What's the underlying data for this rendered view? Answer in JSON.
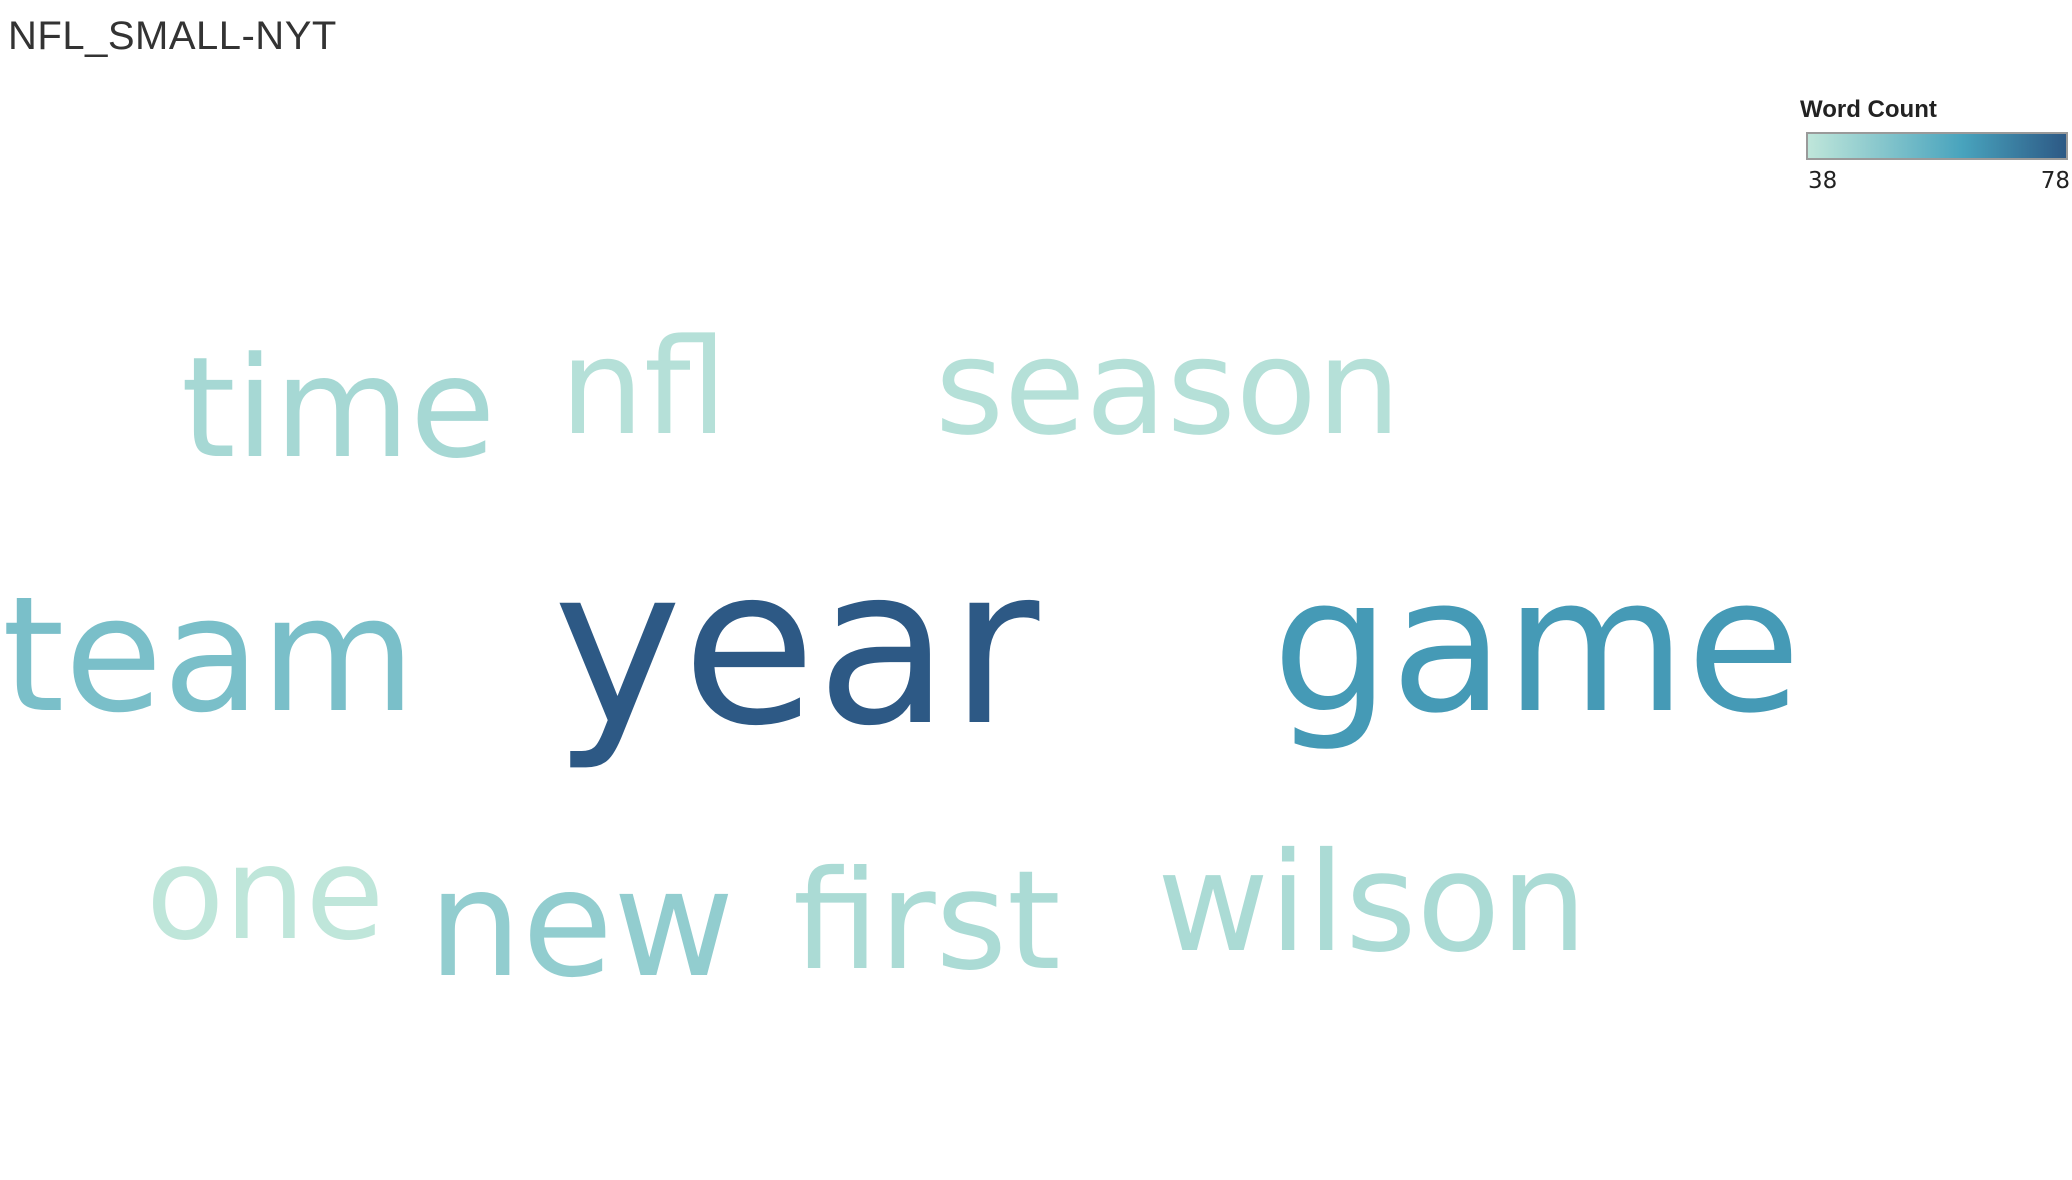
{
  "title": "NFL_SMALL-NYT",
  "legend": {
    "title": "Word Count",
    "min_label": "38",
    "max_label": "78",
    "min": 38,
    "max": 78,
    "color_low": "#bfe6da",
    "color_mid": "#48a3bd",
    "color_high": "#2d5985"
  },
  "chart_data": {
    "type": "word-cloud",
    "measure": "Word Count",
    "words": [
      {
        "text": "year",
        "value": 78
      },
      {
        "text": "game",
        "value": 64
      },
      {
        "text": "team",
        "value": 52
      },
      {
        "text": "new",
        "value": 47
      },
      {
        "text": "time",
        "value": 43
      },
      {
        "text": "wilson",
        "value": 42
      },
      {
        "text": "first",
        "value": 42
      },
      {
        "text": "season",
        "value": 40
      },
      {
        "text": "nfl",
        "value": 40
      },
      {
        "text": "one",
        "value": 38
      }
    ]
  }
}
